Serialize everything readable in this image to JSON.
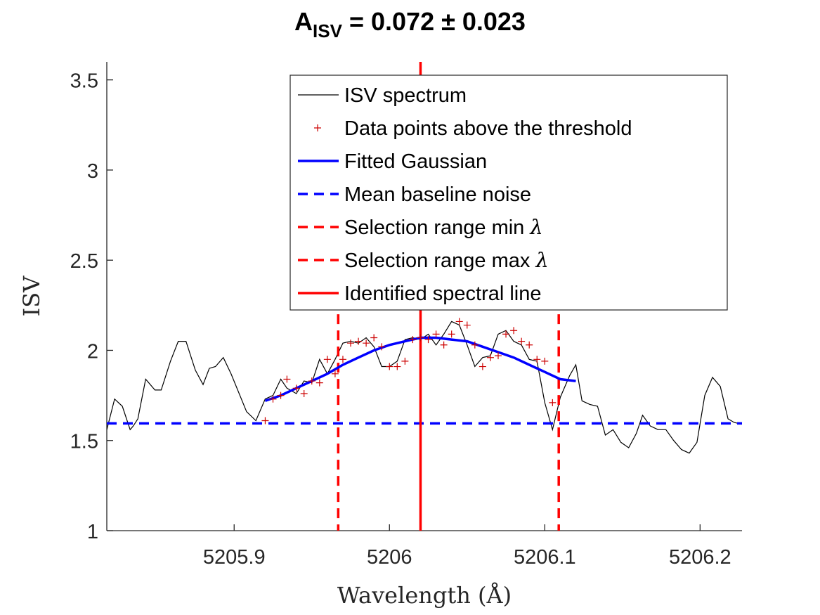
{
  "chart_data": {
    "type": "line",
    "title": {
      "prefix": "A",
      "subscript": "ISV",
      "suffix": " = 0.072 ± 0.023"
    },
    "xlabel": "Wavelength (Å)",
    "ylabel": "ISV",
    "xlim": [
      5205.818,
      5206.227
    ],
    "ylim": [
      1,
      3.6
    ],
    "xticks": [
      5205.9,
      5206,
      5206.1,
      5206.2
    ],
    "xtick_labels": [
      "5205.9",
      "5206",
      "5206.1",
      "5206.2"
    ],
    "yticks": [
      1,
      1.5,
      2,
      2.5,
      3,
      3.5
    ],
    "ytick_labels": [
      "1",
      "1.5",
      "2",
      "2.5",
      "3",
      "3.5"
    ],
    "grid": false,
    "legend_position": "top-right",
    "colors": {
      "spectrum": "#000000",
      "points": "#cc0000",
      "gaussian": "#0000ff",
      "baseline": "#0000ff",
      "selection": "#ff0000",
      "line": "#ff0000"
    },
    "series": [
      {
        "name": "ISV spectrum",
        "style": "thin-black-line",
        "x": [
          5205.818,
          5205.823,
          5205.828,
          5205.833,
          5205.835,
          5205.838,
          5205.843,
          5205.849,
          5205.853,
          5205.859,
          5205.864,
          5205.869,
          5205.875,
          5205.88,
          5205.884,
          5205.888,
          5205.893,
          5205.898,
          5205.908,
          5205.914,
          5205.92,
          5205.925,
          5205.93,
          5205.934,
          5205.94,
          5205.945,
          5205.95,
          5205.955,
          5205.96,
          5205.965,
          5205.97,
          5205.975,
          5205.98,
          5205.985,
          5205.99,
          5205.995,
          5206.0,
          5206.005,
          5206.01,
          5206.015,
          5206.02,
          5206.025,
          5206.03,
          5206.035,
          5206.04,
          5206.045,
          5206.05,
          5206.055,
          5206.06,
          5206.065,
          5206.07,
          5206.075,
          5206.08,
          5206.085,
          5206.09,
          5206.095,
          5206.1,
          5206.105,
          5206.11,
          5206.116,
          5206.12,
          5206.124,
          5206.129,
          5206.134,
          5206.139,
          5206.144,
          5206.149,
          5206.154,
          5206.159,
          5206.163,
          5206.168,
          5206.173,
          5206.178,
          5206.183,
          5206.188,
          5206.193,
          5206.198,
          5206.203,
          5206.208,
          5206.213,
          5206.218,
          5206.222,
          5206.227
        ],
        "y": [
          1.56,
          1.73,
          1.69,
          1.56,
          1.58,
          1.62,
          1.84,
          1.78,
          1.78,
          1.94,
          2.05,
          2.05,
          1.89,
          1.81,
          1.9,
          1.91,
          1.96,
          1.87,
          1.66,
          1.61,
          1.73,
          1.75,
          1.84,
          1.79,
          1.76,
          1.83,
          1.82,
          1.95,
          1.87,
          1.95,
          2.04,
          2.05,
          2.04,
          2.07,
          2.02,
          1.91,
          1.91,
          1.94,
          2.06,
          2.07,
          2.06,
          2.09,
          2.03,
          2.09,
          2.16,
          2.14,
          2.03,
          1.91,
          1.96,
          1.97,
          2.09,
          2.11,
          2.05,
          2.03,
          1.95,
          1.94,
          1.71,
          1.56,
          1.74,
          1.86,
          1.92,
          1.72,
          1.7,
          1.69,
          1.53,
          1.56,
          1.49,
          1.46,
          1.54,
          1.64,
          1.58,
          1.56,
          1.56,
          1.5,
          1.45,
          1.43,
          1.49,
          1.75,
          1.85,
          1.8,
          1.62,
          1.6,
          1.59
        ]
      },
      {
        "name": "Data points above the threshold",
        "style": "red-plus-markers",
        "x": [
          5205.92,
          5205.925,
          5205.93,
          5205.934,
          5205.94,
          5205.945,
          5205.95,
          5205.955,
          5205.96,
          5205.965,
          5205.97,
          5205.975,
          5205.98,
          5205.985,
          5205.99,
          5205.995,
          5206.0,
          5206.005,
          5206.01,
          5206.015,
          5206.02,
          5206.025,
          5206.03,
          5206.035,
          5206.04,
          5206.045,
          5206.05,
          5206.055,
          5206.06,
          5206.065,
          5206.07,
          5206.075,
          5206.08,
          5206.085,
          5206.09,
          5206.095,
          5206.1,
          5206.105
        ],
        "y": [
          1.61,
          1.73,
          1.75,
          1.84,
          1.79,
          1.76,
          1.83,
          1.82,
          1.95,
          1.87,
          1.95,
          2.04,
          2.05,
          2.04,
          2.07,
          2.02,
          1.91,
          1.91,
          1.94,
          2.06,
          2.07,
          2.06,
          2.09,
          2.03,
          2.09,
          2.16,
          2.14,
          2.03,
          1.91,
          1.96,
          1.97,
          2.09,
          2.11,
          2.05,
          2.03,
          1.95,
          1.94,
          1.71
        ]
      },
      {
        "name": "Fitted Gaussian",
        "style": "thick-blue-line",
        "x": [
          5205.92,
          5205.93,
          5205.94,
          5205.95,
          5205.96,
          5205.97,
          5205.98,
          5205.99,
          5206.0,
          5206.01,
          5206.02,
          5206.03,
          5206.04,
          5206.05,
          5206.06,
          5206.07,
          5206.08,
          5206.09,
          5206.1,
          5206.11,
          5206.12
        ],
        "y": [
          1.72,
          1.75,
          1.79,
          1.83,
          1.87,
          1.92,
          1.96,
          2.0,
          2.03,
          2.05,
          2.07,
          2.07,
          2.06,
          2.05,
          2.02,
          1.99,
          1.96,
          1.92,
          1.88,
          1.84,
          1.83
        ]
      },
      {
        "name": "Mean baseline noise",
        "style": "blue-dashed-horizontal",
        "y": 1.595
      },
      {
        "name": "Selection range min λ",
        "style": "red-dashed-vertical",
        "x": 5205.967
      },
      {
        "name": "Selection range max λ",
        "style": "red-dashed-vertical",
        "x": 5206.109
      },
      {
        "name": "Identified spectral line",
        "style": "red-solid-vertical",
        "x": 5206.02
      }
    ],
    "legend": [
      {
        "label": "ISV spectrum",
        "style": "thin-black-line"
      },
      {
        "label": "Data points above the threshold",
        "style": "red-plus"
      },
      {
        "label": "Fitted Gaussian",
        "style": "thick-blue-line"
      },
      {
        "label": "Mean baseline noise",
        "style": "blue-dashed"
      },
      {
        "label": "Selection range min ",
        "symbol": "λ",
        "style": "red-dashed"
      },
      {
        "label": "Selection range max ",
        "symbol": "λ",
        "style": "red-dashed"
      },
      {
        "label": "Identified spectral line",
        "style": "red-solid"
      }
    ]
  }
}
